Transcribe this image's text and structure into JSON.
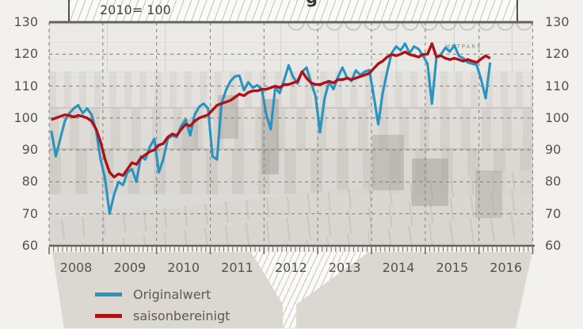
{
  "header": {
    "scale_note": "2010= 100",
    "title_fragment": "g"
  },
  "photo": {
    "crane_label": "METPARS"
  },
  "colors": {
    "blue": "#2b93c0",
    "red": "#ae1117",
    "axis": "#6b665f",
    "grid": "#87827a",
    "text": "#57524b",
    "page_bg": "#f2f1ee",
    "footer_gray": "#dbd8d2",
    "hatch_line": "#c2bfb9"
  },
  "chart_data": {
    "type": "line",
    "title": "2010= 100",
    "xlabel": "",
    "ylabel": "",
    "ylim": [
      60,
      130
    ],
    "grid": "dashed",
    "legend_position": "bottom-left",
    "y_ticks": [
      130,
      120,
      110,
      100,
      90,
      80,
      70,
      60
    ],
    "x_years": [
      "2008",
      "2009",
      "2010",
      "2011",
      "2012",
      "2013",
      "2014",
      "2015",
      "2016"
    ],
    "months_start": "2008-01",
    "months_end": "2016-03",
    "series": [
      {
        "name": "Originalwert",
        "color": "#2b93c0",
        "values": [
          96,
          88,
          93.5,
          99,
          101.5,
          103,
          104,
          101.5,
          103,
          101,
          96,
          87,
          81,
          70,
          76,
          80,
          79,
          83,
          84,
          80,
          88,
          87,
          91,
          93.5,
          83,
          87,
          93.5,
          94.5,
          94,
          97.5,
          99.5,
          94.5,
          101,
          103.5,
          104.5,
          103,
          88,
          87,
          104.5,
          108.7,
          111.5,
          113,
          113.3,
          108.7,
          111.2,
          109.5,
          110.3,
          109,
          101,
          96.5,
          109.5,
          107.8,
          112,
          116.5,
          112.8,
          110.8,
          114.5,
          115.8,
          111,
          107,
          95.5,
          106,
          111.2,
          109,
          112.8,
          115.8,
          112.8,
          111.6,
          114.9,
          113.5,
          114.5,
          115,
          107,
          98,
          107.8,
          114.5,
          120.3,
          122.4,
          121.2,
          123.3,
          120.3,
          122.4,
          121.6,
          119.5,
          117,
          104.5,
          119.1,
          119.9,
          122,
          120.8,
          122.8,
          119.5,
          118.7,
          117.4,
          117,
          116.6,
          112,
          106.2,
          117.4
        ]
      },
      {
        "name": "saisonbereinigt",
        "color": "#ae1117",
        "values": [
          99.5,
          100,
          100.5,
          101,
          100.8,
          100.3,
          100.8,
          100.5,
          100,
          99,
          96.5,
          92.5,
          87,
          83,
          81.5,
          82.5,
          82,
          84,
          86,
          85.5,
          87.5,
          88.5,
          89.5,
          90,
          91.5,
          92,
          94,
          95,
          94.5,
          96.5,
          98,
          97.5,
          99,
          100,
          100.5,
          101,
          102.5,
          104,
          104.5,
          105,
          105.5,
          106.5,
          107.5,
          107,
          108,
          108.5,
          108.5,
          109,
          109,
          109.5,
          110,
          109.5,
          110.5,
          110.5,
          111,
          111.5,
          114.5,
          112.5,
          111,
          110.5,
          110.5,
          111,
          111.5,
          111,
          112,
          112,
          112.5,
          112,
          112.5,
          113,
          113.5,
          114,
          115.5,
          117,
          117.8,
          119.1,
          119.9,
          119.5,
          120,
          120.7,
          119.9,
          119.5,
          119.1,
          119.9,
          120,
          123.3,
          119.1,
          119.5,
          118.7,
          118.3,
          118.7,
          118.3,
          117.8,
          118.3,
          117.8,
          117.4,
          118.5,
          119.5,
          118.7
        ]
      }
    ]
  }
}
